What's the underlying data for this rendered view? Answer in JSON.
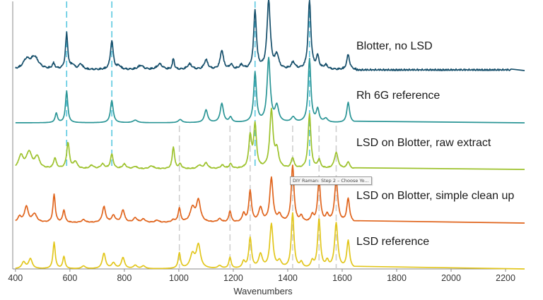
{
  "chart_data": {
    "type": "line",
    "xlabel": "Wavenumbers",
    "xlim": [
      390,
      2270
    ],
    "xticks": [
      400,
      600,
      800,
      1000,
      1200,
      1400,
      1600,
      1800,
      2000,
      2200
    ],
    "x_tick_labels": [
      "400",
      "600",
      "800",
      "1000",
      "1200",
      "1400",
      "1600",
      "1800",
      "2000",
      "2200"
    ],
    "reference_lines_blue": [
      588,
      754,
      1280,
      1480
    ],
    "reference_lines_gray": [
      1002,
      1188,
      1262,
      1418,
      1515,
      1578
    ],
    "series": [
      {
        "name": "Blotter, no LSD",
        "color": "#164f6b",
        "peaks": [
          [
            440,
            0.13,
            14
          ],
          [
            470,
            0.18,
            18
          ],
          [
            540,
            0.08,
            6
          ],
          [
            588,
            0.52,
            5
          ],
          [
            610,
            0.06,
            8
          ],
          [
            640,
            0.08,
            8
          ],
          [
            754,
            0.42,
            6
          ],
          [
            780,
            0.05,
            8
          ],
          [
            860,
            0.06,
            12
          ],
          [
            930,
            0.08,
            12
          ],
          [
            980,
            0.16,
            4
          ],
          [
            1040,
            0.08,
            10
          ],
          [
            1100,
            0.14,
            8
          ],
          [
            1158,
            0.28,
            7
          ],
          [
            1192,
            0.07,
            6
          ],
          [
            1230,
            0.06,
            8
          ],
          [
            1280,
            0.85,
            6
          ],
          [
            1330,
            1.0,
            7
          ],
          [
            1360,
            0.2,
            8
          ],
          [
            1420,
            0.1,
            8
          ],
          [
            1480,
            1.0,
            6
          ],
          [
            1510,
            0.18,
            6
          ],
          [
            1540,
            0.06,
            8
          ],
          [
            1622,
            0.22,
            6
          ],
          [
            1700,
            0.04,
            10
          ]
        ],
        "noise": 0.025
      },
      {
        "name": "Rh 6G reference",
        "color": "#2a9596",
        "peaks": [
          [
            550,
            0.15,
            5
          ],
          [
            588,
            0.5,
            5
          ],
          [
            754,
            0.35,
            6
          ],
          [
            840,
            0.04,
            10
          ],
          [
            1005,
            0.05,
            8
          ],
          [
            1100,
            0.2,
            7
          ],
          [
            1158,
            0.3,
            7
          ],
          [
            1190,
            0.08,
            6
          ],
          [
            1280,
            0.78,
            6
          ],
          [
            1330,
            1.0,
            7
          ],
          [
            1360,
            0.25,
            8
          ],
          [
            1420,
            0.08,
            8
          ],
          [
            1480,
            1.0,
            6
          ],
          [
            1510,
            0.2,
            6
          ],
          [
            1540,
            0.06,
            8
          ],
          [
            1622,
            0.32,
            6
          ]
        ],
        "noise": 0
      },
      {
        "name": "LSD on Blotter, raw extract",
        "color": "#9dc22c",
        "peaks": [
          [
            420,
            0.22,
            10
          ],
          [
            450,
            0.28,
            12
          ],
          [
            480,
            0.2,
            10
          ],
          [
            545,
            0.18,
            6
          ],
          [
            593,
            0.45,
            6
          ],
          [
            620,
            0.12,
            8
          ],
          [
            680,
            0.06,
            8
          ],
          [
            720,
            0.08,
            8
          ],
          [
            754,
            0.25,
            6
          ],
          [
            800,
            0.08,
            8
          ],
          [
            840,
            0.04,
            8
          ],
          [
            900,
            0.05,
            10
          ],
          [
            980,
            0.38,
            5
          ],
          [
            1005,
            0.08,
            6
          ],
          [
            1075,
            0.06,
            8
          ],
          [
            1100,
            0.1,
            8
          ],
          [
            1160,
            0.06,
            8
          ],
          [
            1190,
            0.08,
            6
          ],
          [
            1262,
            0.55,
            6
          ],
          [
            1280,
            0.75,
            6
          ],
          [
            1340,
            1.0,
            7
          ],
          [
            1360,
            0.3,
            8
          ],
          [
            1418,
            0.18,
            6
          ],
          [
            1480,
            0.95,
            6
          ],
          [
            1515,
            0.15,
            6
          ],
          [
            1578,
            0.28,
            8
          ],
          [
            1622,
            0.12,
            6
          ]
        ],
        "noise": 0.015
      },
      {
        "name": "LSD on Blotter, simple clean up",
        "color": "#e0641c",
        "peaks": [
          [
            415,
            0.1,
            8
          ],
          [
            440,
            0.28,
            8
          ],
          [
            470,
            0.15,
            10
          ],
          [
            542,
            0.5,
            5
          ],
          [
            578,
            0.22,
            5
          ],
          [
            650,
            0.05,
            8
          ],
          [
            725,
            0.28,
            7
          ],
          [
            760,
            0.12,
            8
          ],
          [
            795,
            0.22,
            7
          ],
          [
            840,
            0.08,
            8
          ],
          [
            870,
            0.06,
            8
          ],
          [
            920,
            0.04,
            8
          ],
          [
            980,
            0.04,
            8
          ],
          [
            1002,
            0.25,
            5
          ],
          [
            1050,
            0.25,
            10
          ],
          [
            1072,
            0.38,
            9
          ],
          [
            1150,
            0.06,
            8
          ],
          [
            1188,
            0.2,
            5
          ],
          [
            1238,
            0.15,
            6
          ],
          [
            1262,
            0.55,
            6
          ],
          [
            1300,
            0.25,
            8
          ],
          [
            1340,
            0.78,
            7
          ],
          [
            1370,
            0.12,
            8
          ],
          [
            1418,
            1.0,
            6
          ],
          [
            1450,
            0.1,
            6
          ],
          [
            1490,
            0.12,
            6
          ],
          [
            1515,
            0.75,
            6
          ],
          [
            1545,
            0.12,
            6
          ],
          [
            1578,
            0.75,
            7
          ],
          [
            1622,
            0.42,
            6
          ]
        ],
        "noise": 0.012
      },
      {
        "name": "LSD reference",
        "color": "#e2c61c",
        "peaks": [
          [
            430,
            0.12,
            8
          ],
          [
            455,
            0.18,
            8
          ],
          [
            542,
            0.48,
            5
          ],
          [
            578,
            0.22,
            5
          ],
          [
            650,
            0.05,
            8
          ],
          [
            725,
            0.28,
            7
          ],
          [
            760,
            0.1,
            8
          ],
          [
            795,
            0.2,
            7
          ],
          [
            840,
            0.06,
            8
          ],
          [
            870,
            0.05,
            8
          ],
          [
            1002,
            0.28,
            5
          ],
          [
            1050,
            0.25,
            10
          ],
          [
            1072,
            0.42,
            9
          ],
          [
            1150,
            0.05,
            8
          ],
          [
            1188,
            0.2,
            5
          ],
          [
            1238,
            0.12,
            6
          ],
          [
            1262,
            0.55,
            6
          ],
          [
            1300,
            0.25,
            8
          ],
          [
            1340,
            0.8,
            7
          ],
          [
            1370,
            0.12,
            8
          ],
          [
            1418,
            1.0,
            6
          ],
          [
            1450,
            0.1,
            6
          ],
          [
            1490,
            0.12,
            6
          ],
          [
            1515,
            0.9,
            6
          ],
          [
            1545,
            0.12,
            6
          ],
          [
            1578,
            0.82,
            7
          ],
          [
            1622,
            0.5,
            6
          ]
        ],
        "noise": 0
      }
    ]
  },
  "tooltip": {
    "text": "DIY Raman: Step 2 – Choose Yo..."
  }
}
